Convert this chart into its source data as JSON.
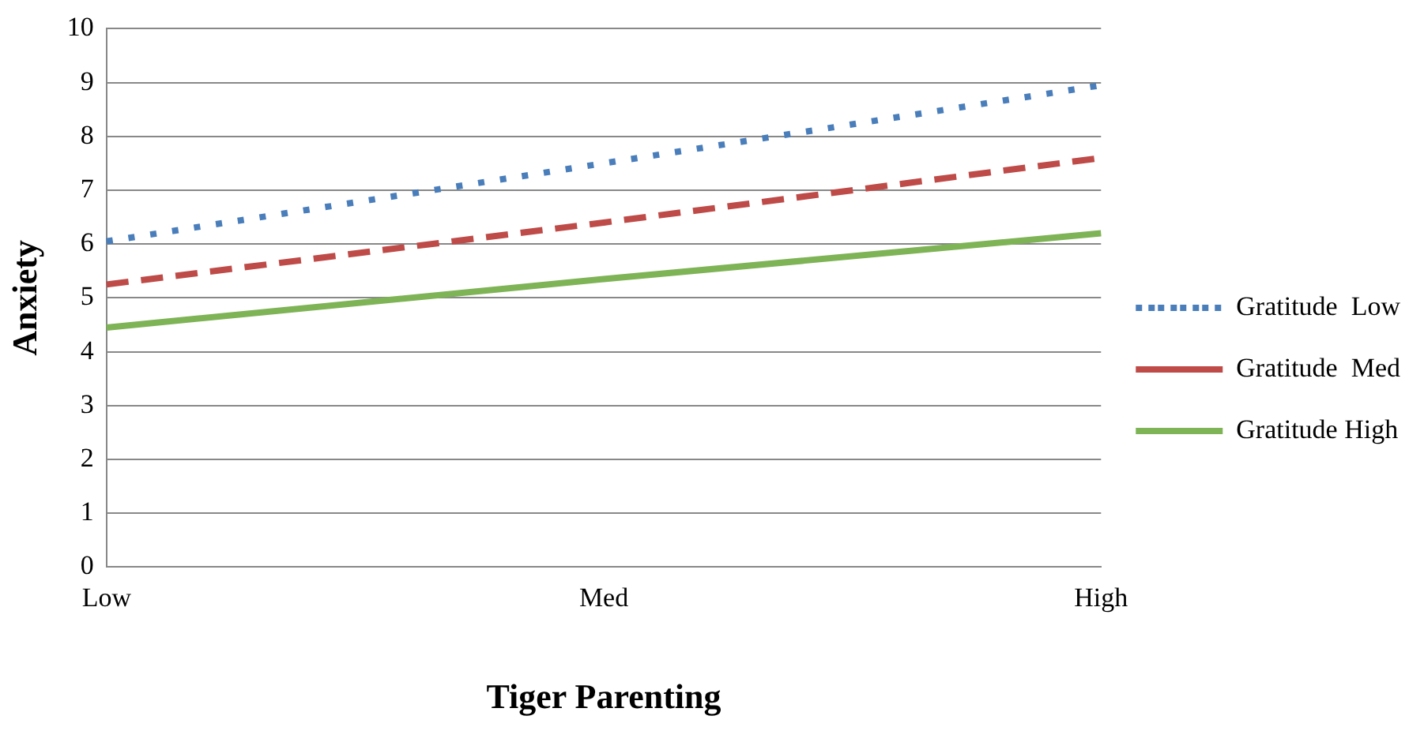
{
  "chart_data": {
    "type": "line",
    "xlabel": "Tiger Parenting",
    "ylabel": "Anxiety",
    "categories": [
      "Low",
      "Med",
      "High"
    ],
    "series": [
      {
        "name": "Gratitude  Low",
        "color": "#4a7ebb",
        "values": [
          6.05,
          7.5,
          8.95
        ],
        "line_style": "dotted"
      },
      {
        "name": "Gratitude  Med",
        "color": "#be4b48",
        "values": [
          5.25,
          6.4,
          7.6
        ],
        "line_style": "dashed"
      },
      {
        "name": "Gratitude High",
        "color": "#7eb356",
        "values": [
          4.45,
          5.35,
          6.2
        ],
        "line_style": "solid"
      }
    ],
    "ylim": [
      0,
      10
    ],
    "yticks": [
      0,
      1,
      2,
      3,
      4,
      5,
      6,
      7,
      8,
      9,
      10
    ],
    "grid": "y",
    "legend": "right",
    "marker": "none"
  }
}
